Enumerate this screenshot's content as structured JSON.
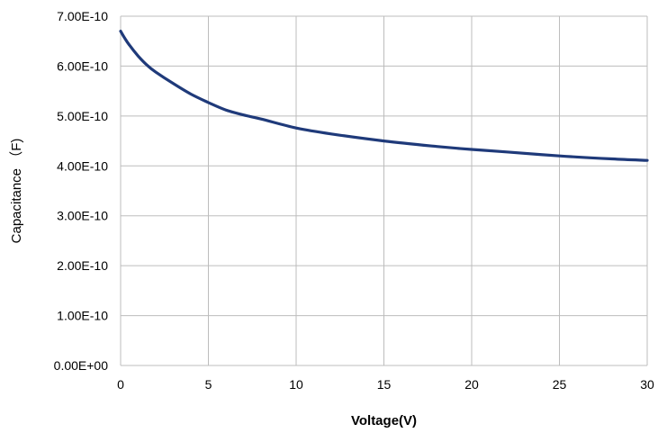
{
  "chart_data": {
    "type": "line",
    "title": "",
    "xlabel": "Voltage(V)",
    "ylabel": "Capacitance （F)",
    "xlim": [
      0,
      30
    ],
    "ylim": [
      0,
      7e-10
    ],
    "x_ticks": [
      0,
      5,
      10,
      15,
      20,
      25,
      30
    ],
    "x_tick_labels": [
      "0",
      "5",
      "10",
      "15",
      "20",
      "25",
      "30"
    ],
    "y_ticks": [
      0,
      1e-10,
      2e-10,
      3e-10,
      4e-10,
      5e-10,
      6e-10,
      7e-10
    ],
    "y_tick_labels": [
      "0.00E+00",
      "1.00E-10",
      "2.00E-10",
      "3.00E-10",
      "4.00E-10",
      "5.00E-10",
      "6.00E-10",
      "7.00E-10"
    ],
    "grid": true,
    "legend": "none",
    "series": [
      {
        "color": "#1f3a7a",
        "x": [
          0,
          0.25,
          0.5,
          1,
          1.5,
          2,
          3,
          4,
          5,
          6,
          7,
          8,
          10,
          12,
          15,
          18,
          20,
          22,
          25,
          28,
          30
        ],
        "y": [
          6.7e-10,
          6.55e-10,
          6.42e-10,
          6.2e-10,
          6.02e-10,
          5.88e-10,
          5.65e-10,
          5.44e-10,
          5.27e-10,
          5.12e-10,
          5.02e-10,
          4.94e-10,
          4.76e-10,
          4.64e-10,
          4.5e-10,
          4.39e-10,
          4.33e-10,
          4.28e-10,
          4.2e-10,
          4.14e-10,
          4.11e-10
        ]
      }
    ]
  }
}
